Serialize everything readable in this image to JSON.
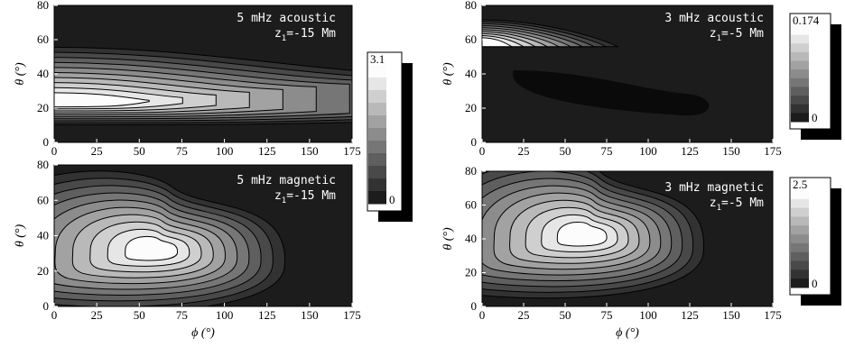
{
  "chart_data": [
    {
      "type": "contour",
      "annotation": [
        "5 mHz acoustic",
        "z",
        "1",
        "=-15 Mm"
      ],
      "xlabel": "",
      "ylabel": "θ (°)",
      "xlim": [
        0,
        175
      ],
      "ylim": [
        0,
        80
      ],
      "xticks": [
        "0",
        "25",
        "50",
        "75",
        "100",
        "125",
        "150",
        "175"
      ],
      "yticks": [
        "0",
        "20",
        "40",
        "60",
        "80"
      ],
      "colorbar": {
        "max": "3.1",
        "min": "0"
      },
      "peak": {
        "phi": 15,
        "theta": 24
      },
      "levels": 10
    },
    {
      "type": "contour",
      "annotation": [
        "5 mHz magnetic",
        "z",
        "1",
        "=-15 Mm"
      ],
      "xlabel": "ϕ (°)",
      "ylabel": "θ (°)",
      "xlim": [
        0,
        175
      ],
      "ylim": [
        0,
        80
      ],
      "xticks": [
        "0",
        "25",
        "50",
        "75",
        "100",
        "125",
        "150",
        "175"
      ],
      "yticks": [
        "0",
        "20",
        "40",
        "60",
        "80"
      ],
      "colorbar": null,
      "peak": {
        "phi": 60,
        "theta": 32
      },
      "levels": 10
    },
    {
      "type": "contour",
      "annotation": [
        "3 mHz acoustic",
        "z",
        "1",
        "=-5 Mm"
      ],
      "xlabel": "",
      "ylabel": "θ (°)",
      "xlim": [
        0,
        175
      ],
      "ylim": [
        0,
        80
      ],
      "xticks": [
        "0",
        "25",
        "50",
        "75",
        "100",
        "125",
        "150",
        "175"
      ],
      "yticks": [
        "0",
        "20",
        "40",
        "60",
        "80"
      ],
      "colorbar": {
        "max": "0.174",
        "min": "0"
      },
      "peak": {
        "phi": 5,
        "theta": 58
      },
      "levels": 10
    },
    {
      "type": "contour",
      "annotation": [
        "3 mHz magnetic",
        "z",
        "1",
        "=-5 Mm"
      ],
      "xlabel": "ϕ (°)",
      "ylabel": "θ (°)",
      "xlim": [
        0,
        175
      ],
      "ylim": [
        0,
        80
      ],
      "xticks": [
        "0",
        "25",
        "50",
        "75",
        "100",
        "125",
        "150",
        "175"
      ],
      "yticks": [
        "0",
        "20",
        "40",
        "60",
        "80"
      ],
      "colorbar": {
        "max": "2.5",
        "min": "0"
      },
      "peak": {
        "phi": 63,
        "theta": 42
      },
      "levels": 10
    }
  ]
}
